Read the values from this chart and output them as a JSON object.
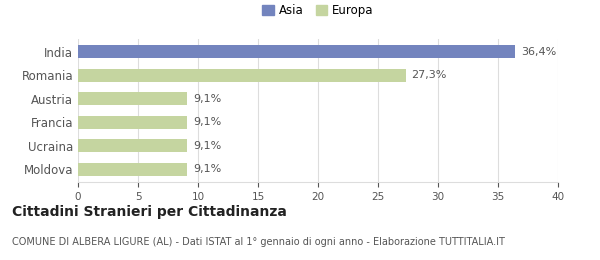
{
  "categories": [
    "Moldova",
    "Ucraina",
    "Francia",
    "Austria",
    "Romania",
    "India"
  ],
  "values": [
    9.1,
    9.1,
    9.1,
    9.1,
    27.3,
    36.4
  ],
  "labels": [
    "9,1%",
    "9,1%",
    "9,1%",
    "9,1%",
    "27,3%",
    "36,4%"
  ],
  "colors": [
    "#c5d5a0",
    "#c5d5a0",
    "#c5d5a0",
    "#c5d5a0",
    "#c5d5a0",
    "#7384be"
  ],
  "xlim": [
    0,
    40
  ],
  "xticks": [
    0,
    5,
    10,
    15,
    20,
    25,
    30,
    35,
    40
  ],
  "title": "Cittadini Stranieri per Cittadinanza",
  "subtitle": "COMUNE DI ALBERA LIGURE (AL) - Dati ISTAT al 1° gennaio di ogni anno - Elaborazione TUTTITALIA.IT",
  "legend_asia_color": "#7384be",
  "legend_europa_color": "#c5d5a0",
  "bar_height": 0.55,
  "background_color": "#ffffff",
  "grid_color": "#dddddd",
  "label_fontsize": 8,
  "title_fontsize": 10,
  "subtitle_fontsize": 7
}
